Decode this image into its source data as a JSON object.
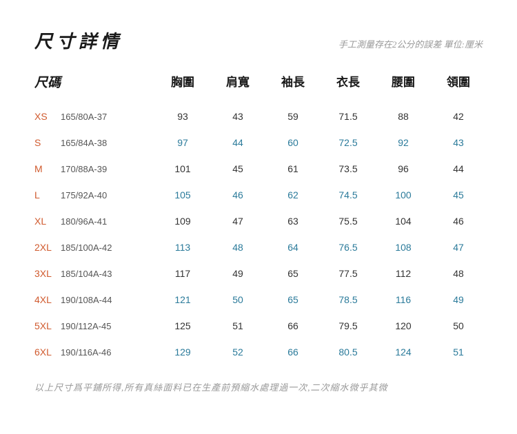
{
  "title": "尺寸詳情",
  "note_top": "手工測量存在2公分的誤差 單位:厘米",
  "note_bottom": "以上尺寸爲平鋪所得,所有真絲面料已在生產前預縮水處理過一次,二次縮水微乎其微",
  "columns": {
    "size_label": "尺碼",
    "headers": [
      "胸圍",
      "肩寬",
      "袖長",
      "衣長",
      "腰圍",
      "領圍"
    ]
  },
  "rows": [
    {
      "code": "XS",
      "spec": "165/80A-37",
      "vals": [
        "93",
        "43",
        "59",
        "71.5",
        "88",
        "42"
      ],
      "accent": false
    },
    {
      "code": "S",
      "spec": "165/84A-38",
      "vals": [
        "97",
        "44",
        "60",
        "72.5",
        "92",
        "43"
      ],
      "accent": true
    },
    {
      "code": "M",
      "spec": "170/88A-39",
      "vals": [
        "101",
        "45",
        "61",
        "73.5",
        "96",
        "44"
      ],
      "accent": false
    },
    {
      "code": "L",
      "spec": "175/92A-40",
      "vals": [
        "105",
        "46",
        "62",
        "74.5",
        "100",
        "45"
      ],
      "accent": true
    },
    {
      "code": "XL",
      "spec": "180/96A-41",
      "vals": [
        "109",
        "47",
        "63",
        "75.5",
        "104",
        "46"
      ],
      "accent": false
    },
    {
      "code": "2XL",
      "spec": "185/100A-42",
      "vals": [
        "113",
        "48",
        "64",
        "76.5",
        "108",
        "47"
      ],
      "accent": true
    },
    {
      "code": "3XL",
      "spec": "185/104A-43",
      "vals": [
        "117",
        "49",
        "65",
        "77.5",
        "112",
        "48"
      ],
      "accent": false
    },
    {
      "code": "4XL",
      "spec": "190/108A-44",
      "vals": [
        "121",
        "50",
        "65",
        "78.5",
        "116",
        "49"
      ],
      "accent": true
    },
    {
      "code": "5XL",
      "spec": "190/112A-45",
      "vals": [
        "125",
        "51",
        "66",
        "79.5",
        "120",
        "50"
      ],
      "accent": false
    },
    {
      "code": "6XL",
      "spec": "190/116A-46",
      "vals": [
        "129",
        "52",
        "66",
        "80.5",
        "124",
        "51"
      ],
      "accent": true
    }
  ],
  "colors": {
    "title": "#1a1a1a",
    "note": "#999999",
    "size_code": "#d05a2e",
    "size_spec": "#555555",
    "val_normal": "#333333",
    "val_accent": "#2a7a9a",
    "background": "#ffffff"
  }
}
